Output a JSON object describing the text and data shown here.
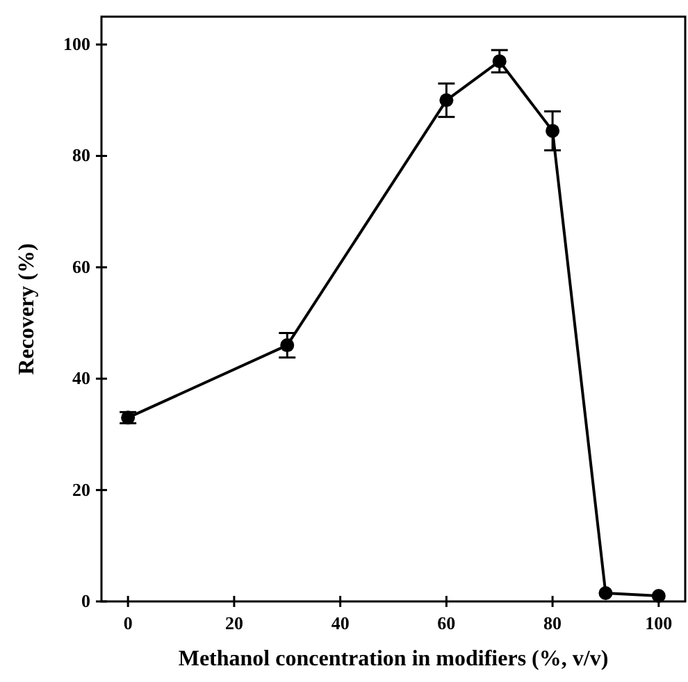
{
  "chart_data": {
    "type": "line",
    "xlabel": "Methanol concentration in  modifiers (%, v/v)",
    "ylabel": "Recovery (%)",
    "xlim": [
      -5,
      105
    ],
    "xticks": [
      0,
      20,
      40,
      60,
      80,
      100
    ],
    "ylim": [
      0,
      105
    ],
    "yticks": [
      0,
      20,
      40,
      60,
      80,
      100
    ],
    "marker": "circle",
    "line_style": "solid",
    "grid": false,
    "series": [
      {
        "color": "#000000",
        "x": [
          0,
          30,
          60,
          70,
          80,
          90,
          100
        ],
        "values": [
          33,
          46,
          90,
          97,
          84.5,
          1.5,
          1
        ],
        "errors": [
          1,
          2.2,
          3,
          2,
          3.5,
          null,
          null
        ]
      }
    ]
  }
}
